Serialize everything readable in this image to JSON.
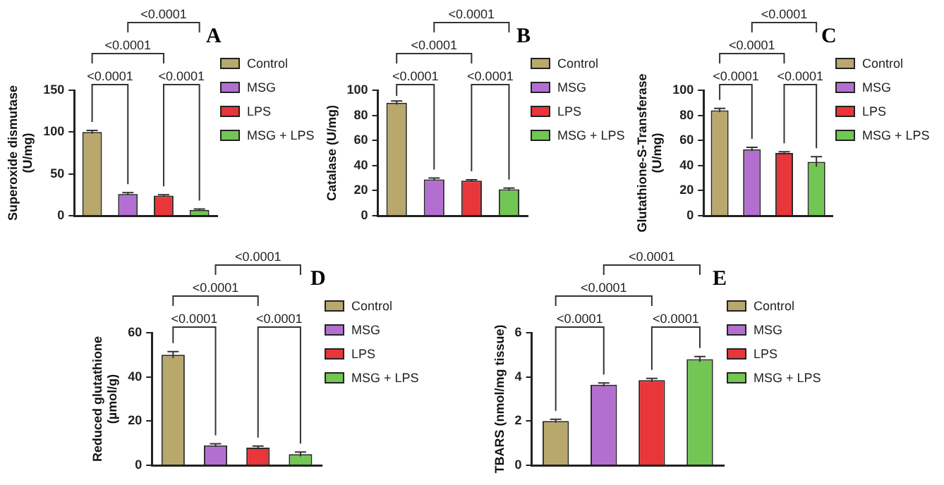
{
  "chart_data": [
    {
      "type": "bar",
      "title": "A",
      "ylabel": "Superoxide dismutase\n(U/mg)",
      "categories": [
        null
      ],
      "ylim": [
        0,
        150
      ],
      "yticks": [
        0,
        50,
        100,
        150
      ],
      "tick_labels": "y",
      "grid": false,
      "legend": "right",
      "annotations": [
        "<0.0001",
        "<0.0001",
        "<0.0001",
        "<0.0001"
      ],
      "series": [
        {
          "name": "Control",
          "color": "#b8a86c",
          "values": [
            100
          ],
          "errors": [
            2
          ]
        },
        {
          "name": "MSG",
          "color": "#b36fd0",
          "values": [
            26
          ],
          "errors": [
            1.5
          ]
        },
        {
          "name": "LPS",
          "color": "#e8363a",
          "values": [
            24
          ],
          "errors": [
            1
          ]
        },
        {
          "name": "MSG + LPS",
          "color": "#72c653",
          "values": [
            7
          ],
          "errors": [
            1
          ]
        }
      ]
    },
    {
      "type": "bar",
      "title": "B",
      "ylabel": "Catalase (U/mg)",
      "categories": [
        null
      ],
      "ylim": [
        0,
        100
      ],
      "yticks": [
        0,
        20,
        40,
        60,
        80,
        100
      ],
      "tick_labels": "y",
      "grid": false,
      "legend": "right",
      "annotations": [
        "<0.0001",
        "<0.0001",
        "<0.0001",
        "<0.0001"
      ],
      "series": [
        {
          "name": "Control",
          "color": "#b8a86c",
          "values": [
            90
          ],
          "errors": [
            1.5
          ]
        },
        {
          "name": "MSG",
          "color": "#b36fd0",
          "values": [
            29
          ],
          "errors": [
            1
          ]
        },
        {
          "name": "LPS",
          "color": "#e8363a",
          "values": [
            28
          ],
          "errors": [
            0.7
          ]
        },
        {
          "name": "MSG + LPS",
          "color": "#72c653",
          "values": [
            21
          ],
          "errors": [
            1
          ]
        }
      ]
    },
    {
      "type": "bar",
      "title": "C",
      "ylabel": "Glutathione-S-Transferase\n(U/mg)",
      "categories": [
        null
      ],
      "ylim": [
        0,
        100
      ],
      "yticks": [
        0,
        20,
        40,
        60,
        80,
        100
      ],
      "tick_labels": "y",
      "grid": false,
      "legend": "right",
      "annotations": [
        "<0.0001",
        "<0.0001",
        "<0.0001",
        "<0.0001"
      ],
      "series": [
        {
          "name": "Control",
          "color": "#b8a86c",
          "values": [
            84
          ],
          "errors": [
            1.5
          ]
        },
        {
          "name": "MSG",
          "color": "#b36fd0",
          "values": [
            53
          ],
          "errors": [
            1.5
          ]
        },
        {
          "name": "LPS",
          "color": "#e8363a",
          "values": [
            50
          ],
          "errors": [
            1
          ]
        },
        {
          "name": "MSG + LPS",
          "color": "#72c653",
          "values": [
            43
          ],
          "errors": [
            4
          ]
        }
      ]
    },
    {
      "type": "bar",
      "title": "D",
      "ylabel": "Reduced glutathione\n(µmol/g)",
      "categories": [
        null
      ],
      "ylim": [
        0,
        60
      ],
      "yticks": [
        0,
        20,
        40,
        60
      ],
      "tick_labels": "y",
      "grid": false,
      "legend": "right",
      "annotations": [
        "<0.0001",
        "<0.0001",
        "<0.0001",
        "<0.0001"
      ],
      "series": [
        {
          "name": "Control",
          "color": "#b8a86c",
          "values": [
            50
          ],
          "errors": [
            1.5
          ]
        },
        {
          "name": "MSG",
          "color": "#b36fd0",
          "values": [
            9
          ],
          "errors": [
            0.7
          ]
        },
        {
          "name": "LPS",
          "color": "#e8363a",
          "values": [
            8
          ],
          "errors": [
            0.7
          ]
        },
        {
          "name": "MSG + LPS",
          "color": "#72c653",
          "values": [
            5
          ],
          "errors": [
            1
          ]
        }
      ]
    },
    {
      "type": "bar",
      "title": "E",
      "ylabel": "TBARS (nmol/mg tissue)",
      "categories": [
        null
      ],
      "ylim": [
        0,
        6
      ],
      "yticks": [
        0,
        2,
        4,
        6
      ],
      "tick_labels": "y",
      "grid": false,
      "legend": "right",
      "annotations": [
        "<0.0001",
        "<0.0001",
        "<0.0001",
        "<0.0001"
      ],
      "series": [
        {
          "name": "Control",
          "color": "#b8a86c",
          "values": [
            2
          ],
          "errors": [
            0.08
          ]
        },
        {
          "name": "MSG",
          "color": "#b36fd0",
          "values": [
            3.65
          ],
          "errors": [
            0.08
          ]
        },
        {
          "name": "LPS",
          "color": "#e8363a",
          "values": [
            3.85
          ],
          "errors": [
            0.08
          ]
        },
        {
          "name": "MSG + LPS",
          "color": "#72c653",
          "values": [
            4.8
          ],
          "errors": [
            0.12
          ]
        }
      ]
    }
  ]
}
